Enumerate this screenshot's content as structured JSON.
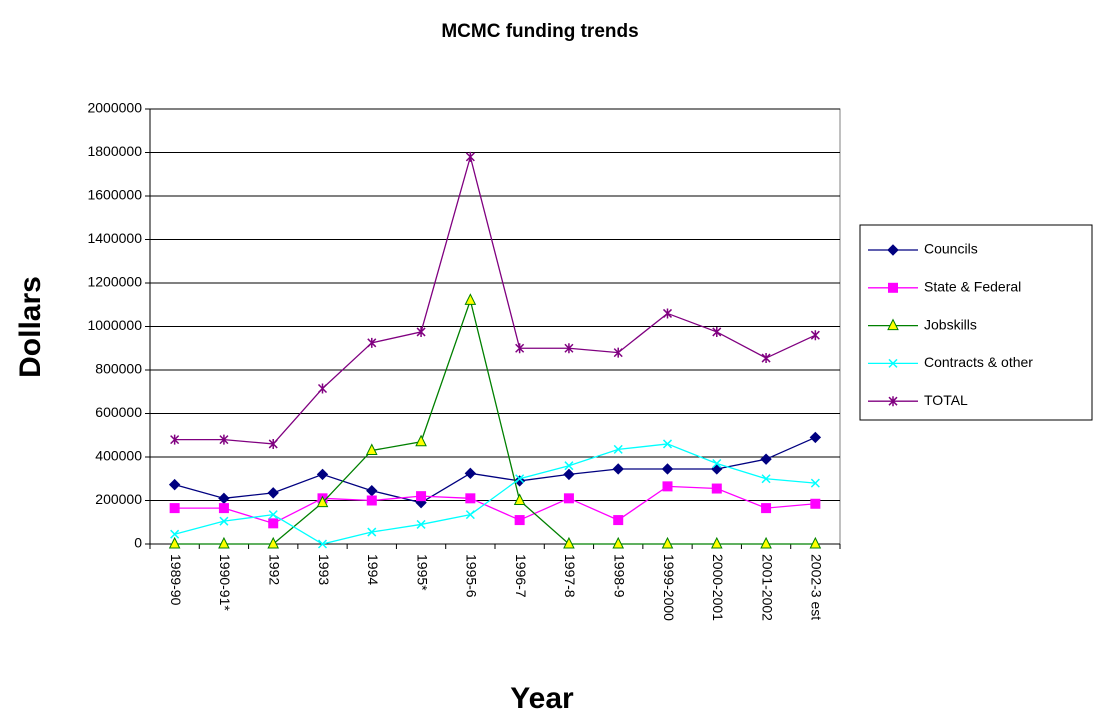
{
  "chart_data": {
    "type": "line",
    "title": "MCMC funding trends",
    "y_label": "Dollars",
    "x_label": "Year",
    "categories": [
      "1989-90",
      "1990-91*",
      "1992",
      "1993",
      "1994",
      "1995*",
      "1995-6",
      "1996-7",
      "1997-8",
      "1998-9",
      "1999-2000",
      "2000-2001",
      "2001-2002",
      "2002-3 est"
    ],
    "series": [
      {
        "name": "Councils",
        "color": "#000080",
        "marker": "diamond",
        "marker_fill": "#000080",
        "values": [
          273000,
          210000,
          235000,
          320000,
          245000,
          190000,
          325000,
          290000,
          320000,
          345000,
          345000,
          345000,
          390000,
          490000
        ]
      },
      {
        "name": "State & Federal",
        "color": "#ff00ff",
        "marker": "square",
        "marker_fill": "#ff00ff",
        "values": [
          165000,
          165000,
          95000,
          210000,
          200000,
          220000,
          210000,
          110000,
          210000,
          110000,
          265000,
          255000,
          165000,
          185000
        ]
      },
      {
        "name": "Jobskills",
        "color": "#008000",
        "marker": "triangle",
        "marker_fill": "#ffff00",
        "values": [
          0,
          0,
          0,
          190000,
          430000,
          470000,
          1120000,
          200000,
          0,
          0,
          0,
          0,
          0,
          0
        ]
      },
      {
        "name": "Contracts & other",
        "color": "#00ffff",
        "marker": "x",
        "marker_fill": "#00ffff",
        "values": [
          45000,
          105000,
          135000,
          0,
          55000,
          90000,
          135000,
          300000,
          360000,
          435000,
          460000,
          370000,
          300000,
          280000
        ]
      },
      {
        "name": "TOTAL",
        "color": "#800080",
        "marker": "star",
        "marker_fill": "#800080",
        "values": [
          480000,
          480000,
          460000,
          715000,
          925000,
          975000,
          1780000,
          900000,
          900000,
          880000,
          1060000,
          975000,
          855000,
          960000
        ]
      }
    ],
    "ylim": [
      0,
      2000000
    ],
    "yticks": [
      0,
      200000,
      400000,
      600000,
      800000,
      1000000,
      1200000,
      1400000,
      1600000,
      1800000,
      2000000
    ],
    "grid": true,
    "legend": "right"
  }
}
